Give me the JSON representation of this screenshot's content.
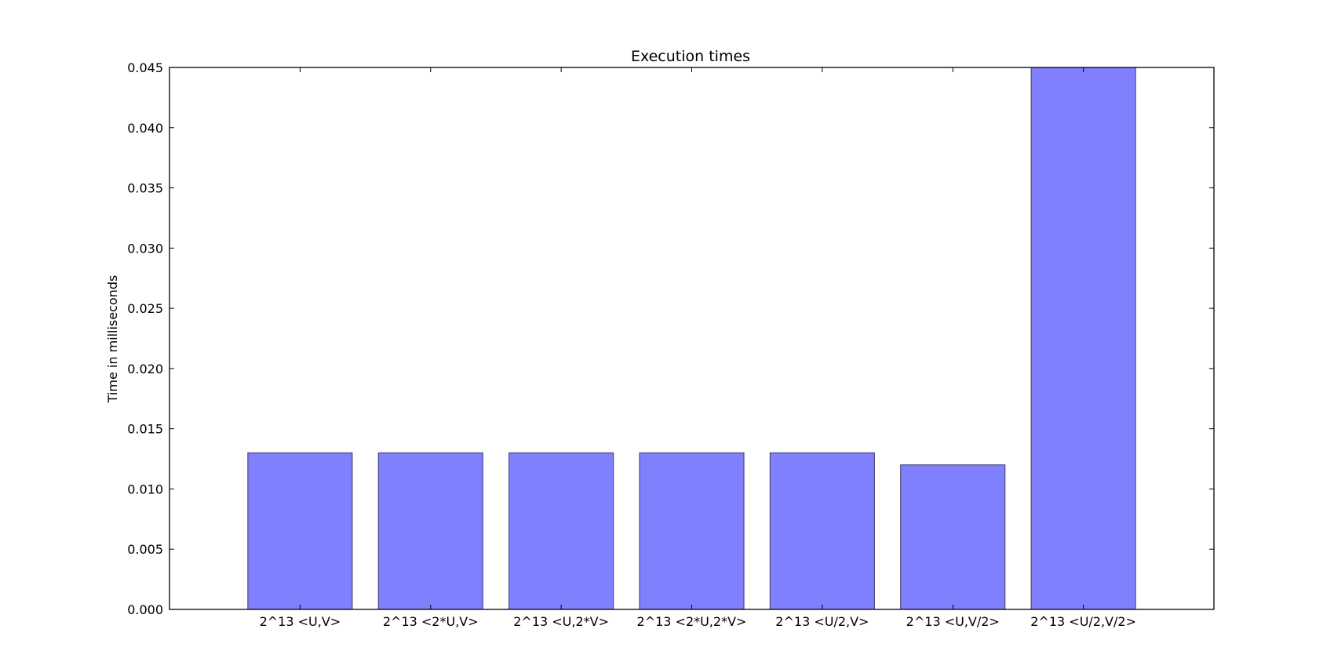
{
  "chart_data": {
    "type": "bar",
    "title": "Execution times",
    "xlabel": "",
    "ylabel": "Time in milliseconds",
    "categories": [
      "2^13 <U,V>",
      "2^13 <2*U,V>",
      "2^13 <U,2*V>",
      "2^13 <2*U,2*V>",
      "2^13 <U/2,V>",
      "2^13 <U,V/2>",
      "2^13 <U/2,V/2>"
    ],
    "values": [
      0.013,
      0.013,
      0.013,
      0.013,
      0.013,
      0.012,
      0.045
    ],
    "ylim": [
      0,
      0.045
    ],
    "xlim": [
      0,
      8
    ],
    "yticks": [
      "0.000",
      "0.005",
      "0.010",
      "0.015",
      "0.020",
      "0.025",
      "0.030",
      "0.035",
      "0.040",
      "0.045"
    ],
    "bar_color": "#8080ff",
    "bar_edge_color": "#3b3b6b",
    "grid": false
  }
}
